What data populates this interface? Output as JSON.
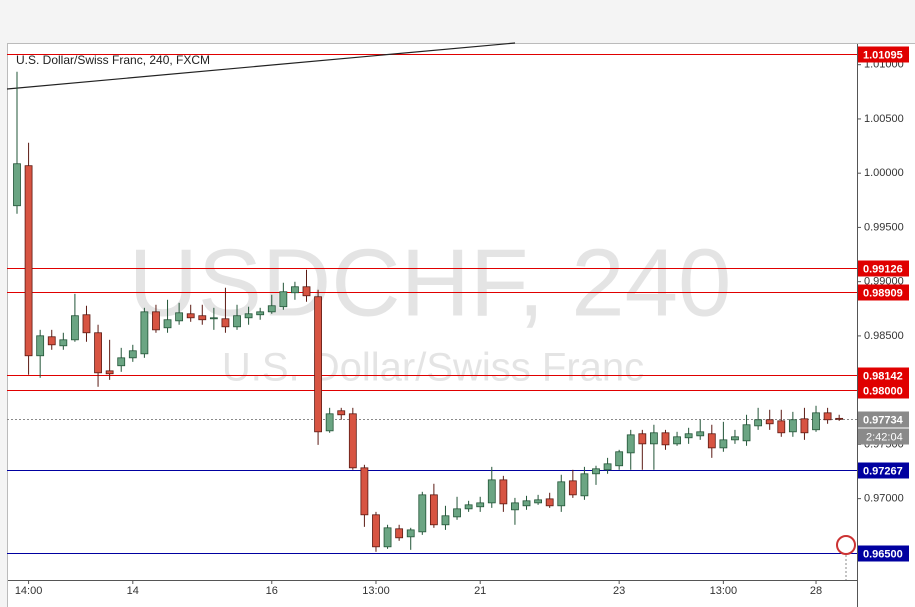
{
  "chart_data": {
    "type": "candlestick",
    "title": "U.S. Dollar/Swiss Franc, 240, FXCM",
    "watermark": "USDCHF, 240",
    "watermark_subtitle": "U.S. Dollar/Swiss Franc",
    "categories": [
      null,
      "14:00",
      null,
      null,
      null,
      null,
      null,
      null,
      null,
      null,
      "14",
      null,
      null,
      null,
      null,
      null,
      null,
      null,
      null,
      null,
      null,
      null,
      "16",
      null,
      null,
      null,
      null,
      null,
      null,
      null,
      null,
      "13:00",
      null,
      null,
      null,
      null,
      null,
      null,
      null,
      null,
      "21",
      null,
      null,
      null,
      null,
      null,
      null,
      null,
      null,
      null,
      null,
      null,
      "23",
      null,
      null,
      null,
      null,
      null,
      null,
      null,
      null,
      "13:00",
      null,
      null,
      null,
      null,
      null,
      null,
      null,
      "28",
      null,
      null
    ],
    "open": [
      0.997,
      1.00069,
      0.98317,
      0.98492,
      0.98409,
      0.98464,
      0.98695,
      0.98529,
      0.98178,
      0.98225,
      0.98298,
      0.98335,
      0.98722,
      0.98575,
      0.98639,
      0.98704,
      0.98686,
      0.98658,
      0.98658,
      0.98584,
      0.98667,
      0.98695,
      0.98722,
      0.98769,
      0.98898,
      0.98953,
      0.98861,
      0.97625,
      0.9781,
      0.97782,
      0.97284,
      0.96851,
      0.96556,
      0.96722,
      0.96648,
      0.96694,
      0.97035,
      0.96759,
      0.96832,
      0.96906,
      0.96925,
      0.96961,
      0.97173,
      0.96897,
      0.96934,
      0.96961,
      0.96998,
      0.96934,
      0.97164,
      0.97026,
      0.97229,
      0.97266,
      0.97303,
      0.97422,
      0.97598,
      0.97505,
      0.97607,
      0.97505,
      0.97561,
      0.97579,
      0.97598,
      0.97468,
      0.97542,
      0.97533,
      0.97671,
      0.97727,
      0.97717,
      0.97616,
      0.97736,
      0.97635,
      0.97791,
      0.9774
    ],
    "high": [
      1.00935,
      1.00281,
      0.98556,
      0.98556,
      0.98529,
      0.98888,
      0.98778,
      0.98603,
      0.98464,
      0.9839,
      0.98418,
      0.98759,
      0.98787,
      0.98833,
      0.98805,
      0.98787,
      0.98787,
      0.98759,
      0.98944,
      0.98787,
      0.98769,
      0.98759,
      0.98879,
      0.9899,
      0.98999,
      0.9911,
      0.98925,
      0.97837,
      0.97837,
      0.97837,
      0.97312,
      0.96878,
      0.96759,
      0.96759,
      0.96731,
      0.97063,
      0.97137,
      0.96934,
      0.97017,
      0.9698,
      0.97017,
      0.97293,
      0.9721,
      0.97007,
      0.97026,
      0.97035,
      0.97054,
      0.9722,
      0.97266,
      0.97293,
      0.97303,
      0.97376,
      0.9745,
      0.97634,
      0.97634,
      0.97681,
      0.97634,
      0.97616,
      0.97653,
      0.97727,
      0.97681,
      0.97708,
      0.97634,
      0.97773,
      0.97837,
      0.97819,
      0.97819,
      0.978,
      0.97837,
      0.97856,
      0.97837,
      0.97773
    ],
    "low": [
      0.99626,
      0.98142,
      0.98114,
      0.98372,
      0.98372,
      0.98446,
      0.98446,
      0.98031,
      0.98095,
      0.98169,
      0.98261,
      0.98298,
      0.98529,
      0.98529,
      0.98603,
      0.9863,
      0.98603,
      0.98556,
      0.98529,
      0.98556,
      0.98603,
      0.98649,
      0.98704,
      0.98741,
      0.98833,
      0.98815,
      0.97496,
      0.97607,
      0.97727,
      0.97266,
      0.9674,
      0.9651,
      0.96537,
      0.96611,
      0.96528,
      0.96666,
      0.96731,
      0.96712,
      0.96805,
      0.96878,
      0.96878,
      0.96915,
      0.96878,
      0.96759,
      0.96897,
      0.96943,
      0.96915,
      0.96878,
      0.97007,
      0.96989,
      0.97127,
      0.97229,
      0.97266,
      0.97266,
      0.97266,
      0.97266,
      0.9745,
      0.97487,
      0.97505,
      0.97542,
      0.97376,
      0.97432,
      0.97505,
      0.97487,
      0.97634,
      0.97634,
      0.9757,
      0.9757,
      0.97542,
      0.97616,
      0.9769,
      0.97717
    ],
    "close": [
      1.00087,
      0.98317,
      0.98501,
      0.98418,
      0.98464,
      0.98686,
      0.98529,
      0.9816,
      0.98151,
      0.98298,
      0.98363,
      0.98722,
      0.98556,
      0.98649,
      0.98713,
      0.98667,
      0.98649,
      0.98667,
      0.98584,
      0.98686,
      0.98704,
      0.98722,
      0.98778,
      0.98907,
      0.98953,
      0.9887,
      0.97616,
      0.97782,
      0.97773,
      0.97284,
      0.96851,
      0.96556,
      0.96731,
      0.96639,
      0.96712,
      0.97035,
      0.96759,
      0.96842,
      0.96906,
      0.96943,
      0.96961,
      0.97173,
      0.96952,
      0.96961,
      0.9698,
      0.96989,
      0.96934,
      0.97155,
      0.97035,
      0.97229,
      0.97275,
      0.97321,
      0.97432,
      0.97588,
      0.97505,
      0.97607,
      0.97496,
      0.9757,
      0.97598,
      0.97616,
      0.97468,
      0.97542,
      0.9757,
      0.97681,
      0.97727,
      0.9769,
      0.97607,
      0.97727,
      0.97607,
      0.97791,
      0.97727,
      0.97734
    ],
    "up_color": "#6ba583",
    "up_edge": "#225437",
    "down_color": "#d75442",
    "down_edge": "#5b1a13",
    "ylim": [
      0.9625,
      1.012
    ],
    "yticks": [
      {
        "value": 1.01,
        "label": "1.01000"
      },
      {
        "value": 1.005,
        "label": "1.00500"
      },
      {
        "value": 1.0,
        "label": "1.00000"
      },
      {
        "value": 0.995,
        "label": "0.99500"
      },
      {
        "value": 0.99,
        "label": "0.99000"
      },
      {
        "value": 0.985,
        "label": "0.98500"
      },
      {
        "value": 0.975,
        "label": "0.97500"
      },
      {
        "value": 0.97,
        "label": "0.97000"
      }
    ],
    "grid": false,
    "levels": [
      {
        "value": 1.01095,
        "color": "#e00000"
      },
      {
        "value": 0.99126,
        "color": "#e00000"
      },
      {
        "value": 0.98909,
        "color": "#e00000"
      },
      {
        "value": 0.98142,
        "color": "#e00000"
      },
      {
        "value": 0.98,
        "label": "0.98000",
        "color": "#e00000"
      },
      {
        "value": 0.97267,
        "color": "#0000a0"
      },
      {
        "value": 0.965,
        "label": "0.96500",
        "color": "#0000a0"
      }
    ],
    "last_price": {
      "value": 0.97734,
      "countdown": "2:42:04",
      "color": "#8a8a8a"
    }
  }
}
